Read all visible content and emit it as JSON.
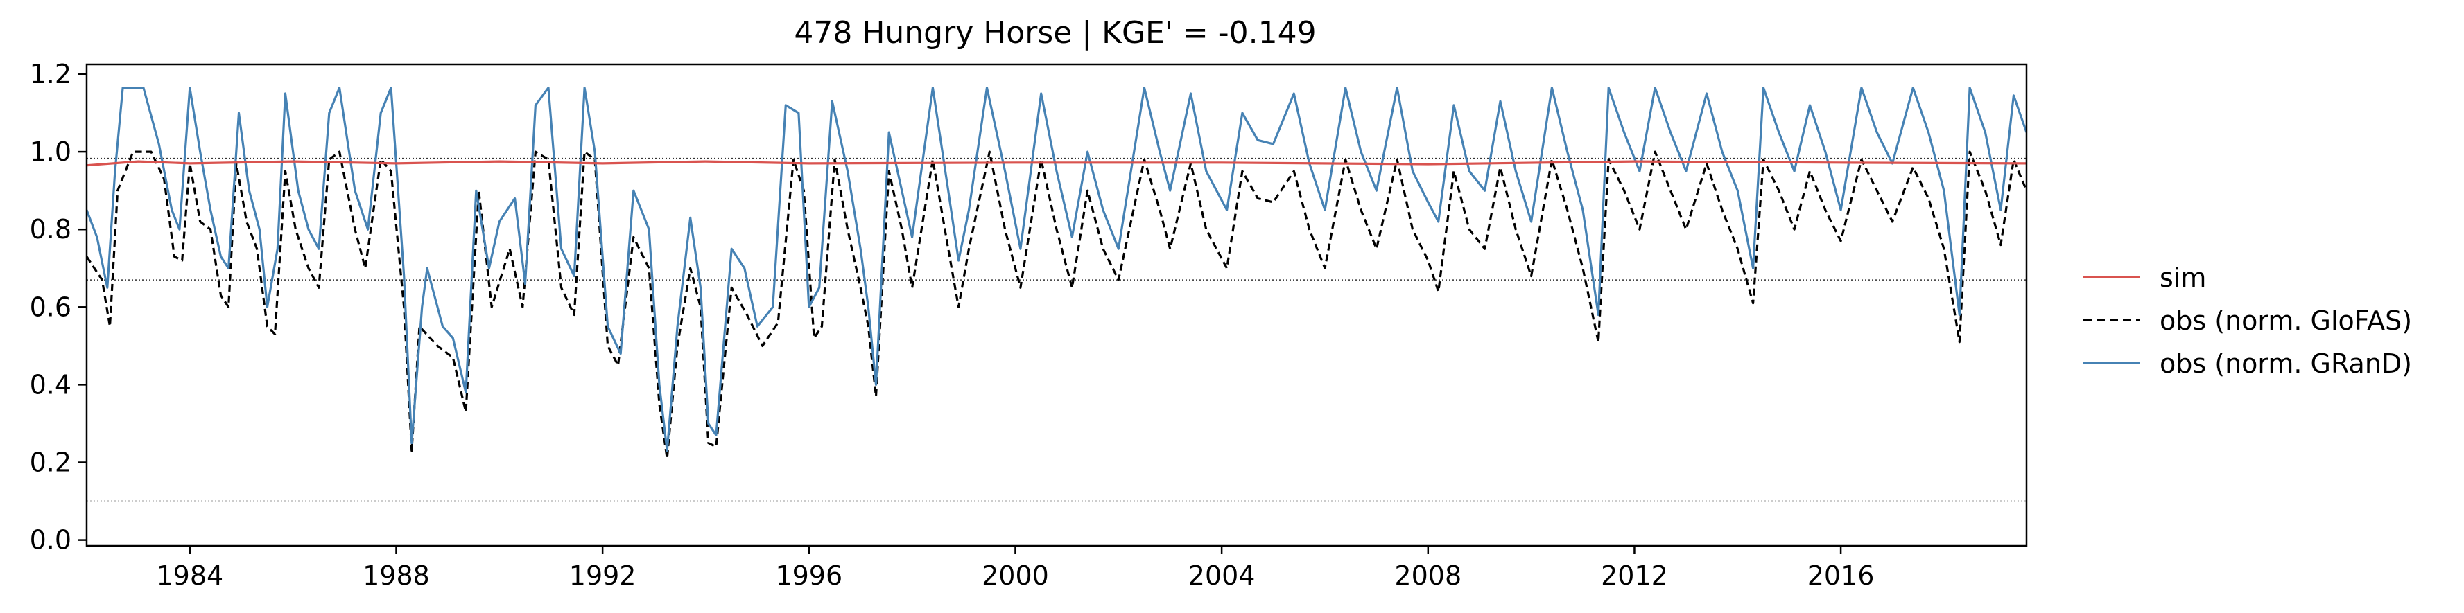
{
  "chart_data": {
    "type": "line",
    "title": "478  Hungry Horse | KGE' = -0.149",
    "xlabel": "",
    "ylabel": "",
    "x_range": [
      1982.0,
      2019.6
    ],
    "ylim": [
      -0.015,
      1.225
    ],
    "x_ticks": [
      1984,
      1988,
      1992,
      1996,
      2000,
      2004,
      2008,
      2012,
      2016
    ],
    "y_ticks": [
      0.0,
      0.2,
      0.4,
      0.6,
      0.8,
      1.0,
      1.2
    ],
    "y_tick_labels": [
      "0.0",
      "0.2",
      "0.4",
      "0.6",
      "0.8",
      "1.0",
      "1.2"
    ],
    "x_tick_labels": [
      "1984",
      "1988",
      "1992",
      "1996",
      "2000",
      "2004",
      "2008",
      "2012",
      "2016"
    ],
    "reference_lines": [
      0.1,
      0.67,
      0.983
    ],
    "grid": false,
    "legend_position": "right",
    "series": [
      {
        "name": "sim",
        "color": "#d9534f",
        "style": "solid",
        "points": [
          [
            1982.0,
            0.965
          ],
          [
            1983.0,
            0.975
          ],
          [
            1984.0,
            0.97
          ],
          [
            1986.0,
            0.975
          ],
          [
            1988.0,
            0.97
          ],
          [
            1990.0,
            0.975
          ],
          [
            1992.0,
            0.97
          ],
          [
            1994.0,
            0.975
          ],
          [
            1996.0,
            0.97
          ],
          [
            2000.0,
            0.972
          ],
          [
            2004.0,
            0.972
          ],
          [
            2008.0,
            0.968
          ],
          [
            2012.0,
            0.975
          ],
          [
            2016.0,
            0.972
          ],
          [
            2019.6,
            0.97
          ]
        ]
      },
      {
        "name": "obs (norm. GloFAS)",
        "color": "#000000",
        "style": "dashed",
        "points": [
          [
            1982.0,
            0.73
          ],
          [
            1982.3,
            0.67
          ],
          [
            1982.45,
            0.55
          ],
          [
            1982.6,
            0.9
          ],
          [
            1982.9,
            1.0
          ],
          [
            1983.25,
            1.0
          ],
          [
            1983.5,
            0.93
          ],
          [
            1983.7,
            0.73
          ],
          [
            1983.85,
            0.72
          ],
          [
            1984.0,
            0.97
          ],
          [
            1984.2,
            0.82
          ],
          [
            1984.4,
            0.8
          ],
          [
            1984.6,
            0.63
          ],
          [
            1984.75,
            0.6
          ],
          [
            1984.9,
            0.97
          ],
          [
            1985.1,
            0.82
          ],
          [
            1985.3,
            0.75
          ],
          [
            1985.5,
            0.55
          ],
          [
            1985.65,
            0.53
          ],
          [
            1985.85,
            0.95
          ],
          [
            1986.05,
            0.8
          ],
          [
            1986.3,
            0.7
          ],
          [
            1986.5,
            0.65
          ],
          [
            1986.7,
            0.98
          ],
          [
            1986.9,
            1.0
          ],
          [
            1987.2,
            0.8
          ],
          [
            1987.4,
            0.7
          ],
          [
            1987.7,
            0.98
          ],
          [
            1987.9,
            0.95
          ],
          [
            1988.15,
            0.6
          ],
          [
            1988.3,
            0.23
          ],
          [
            1988.45,
            0.55
          ],
          [
            1988.8,
            0.5
          ],
          [
            1989.1,
            0.47
          ],
          [
            1989.35,
            0.33
          ],
          [
            1989.6,
            0.9
          ],
          [
            1989.85,
            0.6
          ],
          [
            1990.2,
            0.75
          ],
          [
            1990.45,
            0.6
          ],
          [
            1990.7,
            1.0
          ],
          [
            1990.95,
            0.98
          ],
          [
            1991.2,
            0.65
          ],
          [
            1991.45,
            0.58
          ],
          [
            1991.65,
            1.0
          ],
          [
            1991.85,
            0.98
          ],
          [
            1992.1,
            0.5
          ],
          [
            1992.3,
            0.45
          ],
          [
            1992.6,
            0.78
          ],
          [
            1992.9,
            0.7
          ],
          [
            1993.1,
            0.35
          ],
          [
            1993.25,
            0.21
          ],
          [
            1993.45,
            0.5
          ],
          [
            1993.7,
            0.7
          ],
          [
            1993.9,
            0.6
          ],
          [
            1994.05,
            0.25
          ],
          [
            1994.2,
            0.24
          ],
          [
            1994.5,
            0.65
          ],
          [
            1994.8,
            0.58
          ],
          [
            1995.1,
            0.5
          ],
          [
            1995.4,
            0.56
          ],
          [
            1995.7,
            0.98
          ],
          [
            1995.9,
            0.9
          ],
          [
            1996.1,
            0.52
          ],
          [
            1996.25,
            0.55
          ],
          [
            1996.5,
            0.98
          ],
          [
            1996.75,
            0.8
          ],
          [
            1997.0,
            0.65
          ],
          [
            1997.15,
            0.55
          ],
          [
            1997.3,
            0.37
          ],
          [
            1997.55,
            0.95
          ],
          [
            1997.8,
            0.8
          ],
          [
            1998.0,
            0.65
          ],
          [
            1998.4,
            0.98
          ],
          [
            1998.7,
            0.75
          ],
          [
            1998.9,
            0.6
          ],
          [
            1999.1,
            0.75
          ],
          [
            1999.5,
            1.0
          ],
          [
            1999.8,
            0.8
          ],
          [
            2000.1,
            0.65
          ],
          [
            2000.5,
            0.98
          ],
          [
            2000.8,
            0.8
          ],
          [
            2001.1,
            0.65
          ],
          [
            2001.4,
            0.9
          ],
          [
            2001.7,
            0.75
          ],
          [
            2002.0,
            0.67
          ],
          [
            2002.5,
            0.98
          ],
          [
            2002.8,
            0.85
          ],
          [
            2003.0,
            0.75
          ],
          [
            2003.4,
            0.97
          ],
          [
            2003.7,
            0.8
          ],
          [
            2004.1,
            0.7
          ],
          [
            2004.4,
            0.95
          ],
          [
            2004.7,
            0.88
          ],
          [
            2005.0,
            0.87
          ],
          [
            2005.4,
            0.95
          ],
          [
            2005.7,
            0.8
          ],
          [
            2006.0,
            0.7
          ],
          [
            2006.4,
            0.98
          ],
          [
            2006.7,
            0.85
          ],
          [
            2007.0,
            0.75
          ],
          [
            2007.4,
            0.98
          ],
          [
            2007.7,
            0.8
          ],
          [
            2008.0,
            0.72
          ],
          [
            2008.2,
            0.64
          ],
          [
            2008.5,
            0.95
          ],
          [
            2008.8,
            0.8
          ],
          [
            2009.1,
            0.75
          ],
          [
            2009.4,
            0.96
          ],
          [
            2009.7,
            0.8
          ],
          [
            2010.0,
            0.68
          ],
          [
            2010.4,
            0.98
          ],
          [
            2010.7,
            0.85
          ],
          [
            2011.0,
            0.7
          ],
          [
            2011.3,
            0.51
          ],
          [
            2011.5,
            0.98
          ],
          [
            2011.8,
            0.9
          ],
          [
            2012.1,
            0.8
          ],
          [
            2012.4,
            1.0
          ],
          [
            2012.7,
            0.9
          ],
          [
            2013.0,
            0.8
          ],
          [
            2013.4,
            0.97
          ],
          [
            2013.7,
            0.85
          ],
          [
            2014.0,
            0.75
          ],
          [
            2014.3,
            0.61
          ],
          [
            2014.5,
            0.98
          ],
          [
            2014.8,
            0.9
          ],
          [
            2015.1,
            0.8
          ],
          [
            2015.4,
            0.95
          ],
          [
            2015.7,
            0.85
          ],
          [
            2016.0,
            0.77
          ],
          [
            2016.4,
            0.98
          ],
          [
            2016.7,
            0.9
          ],
          [
            2017.0,
            0.82
          ],
          [
            2017.4,
            0.96
          ],
          [
            2017.7,
            0.88
          ],
          [
            2018.0,
            0.75
          ],
          [
            2018.3,
            0.51
          ],
          [
            2018.5,
            1.0
          ],
          [
            2018.8,
            0.9
          ],
          [
            2019.1,
            0.76
          ],
          [
            2019.35,
            0.98
          ],
          [
            2019.6,
            0.9
          ]
        ]
      },
      {
        "name": "obs (norm. GRanD)",
        "color": "#4682b4",
        "style": "solid",
        "points": [
          [
            1982.0,
            0.85
          ],
          [
            1982.2,
            0.78
          ],
          [
            1982.4,
            0.65
          ],
          [
            1982.55,
            0.95
          ],
          [
            1982.7,
            1.165
          ],
          [
            1983.1,
            1.165
          ],
          [
            1983.4,
            1.02
          ],
          [
            1983.65,
            0.85
          ],
          [
            1983.8,
            0.8
          ],
          [
            1984.0,
            1.165
          ],
          [
            1984.2,
            1.0
          ],
          [
            1984.4,
            0.85
          ],
          [
            1984.6,
            0.73
          ],
          [
            1984.75,
            0.7
          ],
          [
            1984.95,
            1.1
          ],
          [
            1985.15,
            0.9
          ],
          [
            1985.35,
            0.8
          ],
          [
            1985.5,
            0.6
          ],
          [
            1985.7,
            0.75
          ],
          [
            1985.85,
            1.15
          ],
          [
            1986.1,
            0.9
          ],
          [
            1986.3,
            0.8
          ],
          [
            1986.5,
            0.75
          ],
          [
            1986.7,
            1.1
          ],
          [
            1986.9,
            1.165
          ],
          [
            1987.2,
            0.9
          ],
          [
            1987.45,
            0.8
          ],
          [
            1987.7,
            1.1
          ],
          [
            1987.9,
            1.165
          ],
          [
            1988.15,
            0.68
          ],
          [
            1988.3,
            0.25
          ],
          [
            1988.5,
            0.6
          ],
          [
            1988.6,
            0.7
          ],
          [
            1988.9,
            0.55
          ],
          [
            1989.1,
            0.52
          ],
          [
            1989.35,
            0.38
          ],
          [
            1989.55,
            0.9
          ],
          [
            1989.8,
            0.7
          ],
          [
            1990.0,
            0.82
          ],
          [
            1990.3,
            0.88
          ],
          [
            1990.5,
            0.66
          ],
          [
            1990.7,
            1.12
          ],
          [
            1990.95,
            1.165
          ],
          [
            1991.2,
            0.75
          ],
          [
            1991.45,
            0.68
          ],
          [
            1991.65,
            1.165
          ],
          [
            1991.85,
            1.0
          ],
          [
            1992.1,
            0.55
          ],
          [
            1992.35,
            0.48
          ],
          [
            1992.6,
            0.9
          ],
          [
            1992.9,
            0.8
          ],
          [
            1993.1,
            0.4
          ],
          [
            1993.25,
            0.23
          ],
          [
            1993.45,
            0.55
          ],
          [
            1993.7,
            0.83
          ],
          [
            1993.9,
            0.65
          ],
          [
            1994.05,
            0.3
          ],
          [
            1994.2,
            0.27
          ],
          [
            1994.5,
            0.75
          ],
          [
            1994.75,
            0.7
          ],
          [
            1995.0,
            0.55
          ],
          [
            1995.3,
            0.6
          ],
          [
            1995.55,
            1.12
          ],
          [
            1995.8,
            1.1
          ],
          [
            1996.0,
            0.6
          ],
          [
            1996.2,
            0.65
          ],
          [
            1996.45,
            1.13
          ],
          [
            1996.75,
            0.95
          ],
          [
            1997.0,
            0.75
          ],
          [
            1997.15,
            0.6
          ],
          [
            1997.3,
            0.4
          ],
          [
            1997.55,
            1.05
          ],
          [
            1997.8,
            0.9
          ],
          [
            1998.0,
            0.78
          ],
          [
            1998.4,
            1.165
          ],
          [
            1998.7,
            0.9
          ],
          [
            1998.9,
            0.72
          ],
          [
            1999.1,
            0.85
          ],
          [
            1999.45,
            1.165
          ],
          [
            1999.8,
            0.95
          ],
          [
            2000.1,
            0.75
          ],
          [
            2000.5,
            1.15
          ],
          [
            2000.8,
            0.95
          ],
          [
            2001.1,
            0.78
          ],
          [
            2001.4,
            1.0
          ],
          [
            2001.7,
            0.85
          ],
          [
            2002.0,
            0.75
          ],
          [
            2002.5,
            1.165
          ],
          [
            2002.8,
            1.0
          ],
          [
            2003.0,
            0.9
          ],
          [
            2003.4,
            1.15
          ],
          [
            2003.7,
            0.95
          ],
          [
            2004.1,
            0.85
          ],
          [
            2004.4,
            1.1
          ],
          [
            2004.7,
            1.03
          ],
          [
            2005.0,
            1.02
          ],
          [
            2005.4,
            1.15
          ],
          [
            2005.7,
            0.97
          ],
          [
            2006.0,
            0.85
          ],
          [
            2006.4,
            1.165
          ],
          [
            2006.7,
            1.0
          ],
          [
            2007.0,
            0.9
          ],
          [
            2007.4,
            1.165
          ],
          [
            2007.7,
            0.95
          ],
          [
            2008.0,
            0.87
          ],
          [
            2008.2,
            0.82
          ],
          [
            2008.5,
            1.12
          ],
          [
            2008.8,
            0.95
          ],
          [
            2009.1,
            0.9
          ],
          [
            2009.4,
            1.13
          ],
          [
            2009.7,
            0.95
          ],
          [
            2010.0,
            0.82
          ],
          [
            2010.4,
            1.165
          ],
          [
            2010.7,
            1.0
          ],
          [
            2011.0,
            0.85
          ],
          [
            2011.3,
            0.58
          ],
          [
            2011.5,
            1.165
          ],
          [
            2011.8,
            1.05
          ],
          [
            2012.1,
            0.95
          ],
          [
            2012.4,
            1.165
          ],
          [
            2012.7,
            1.05
          ],
          [
            2013.0,
            0.95
          ],
          [
            2013.4,
            1.15
          ],
          [
            2013.7,
            1.0
          ],
          [
            2014.0,
            0.9
          ],
          [
            2014.3,
            0.7
          ],
          [
            2014.5,
            1.165
          ],
          [
            2014.8,
            1.05
          ],
          [
            2015.1,
            0.95
          ],
          [
            2015.4,
            1.12
          ],
          [
            2015.7,
            1.0
          ],
          [
            2016.0,
            0.85
          ],
          [
            2016.4,
            1.165
          ],
          [
            2016.7,
            1.05
          ],
          [
            2017.0,
            0.97
          ],
          [
            2017.4,
            1.165
          ],
          [
            2017.7,
            1.05
          ],
          [
            2018.0,
            0.9
          ],
          [
            2018.3,
            0.58
          ],
          [
            2018.5,
            1.165
          ],
          [
            2018.8,
            1.05
          ],
          [
            2019.1,
            0.85
          ],
          [
            2019.35,
            1.145
          ],
          [
            2019.6,
            1.05
          ]
        ]
      }
    ]
  }
}
